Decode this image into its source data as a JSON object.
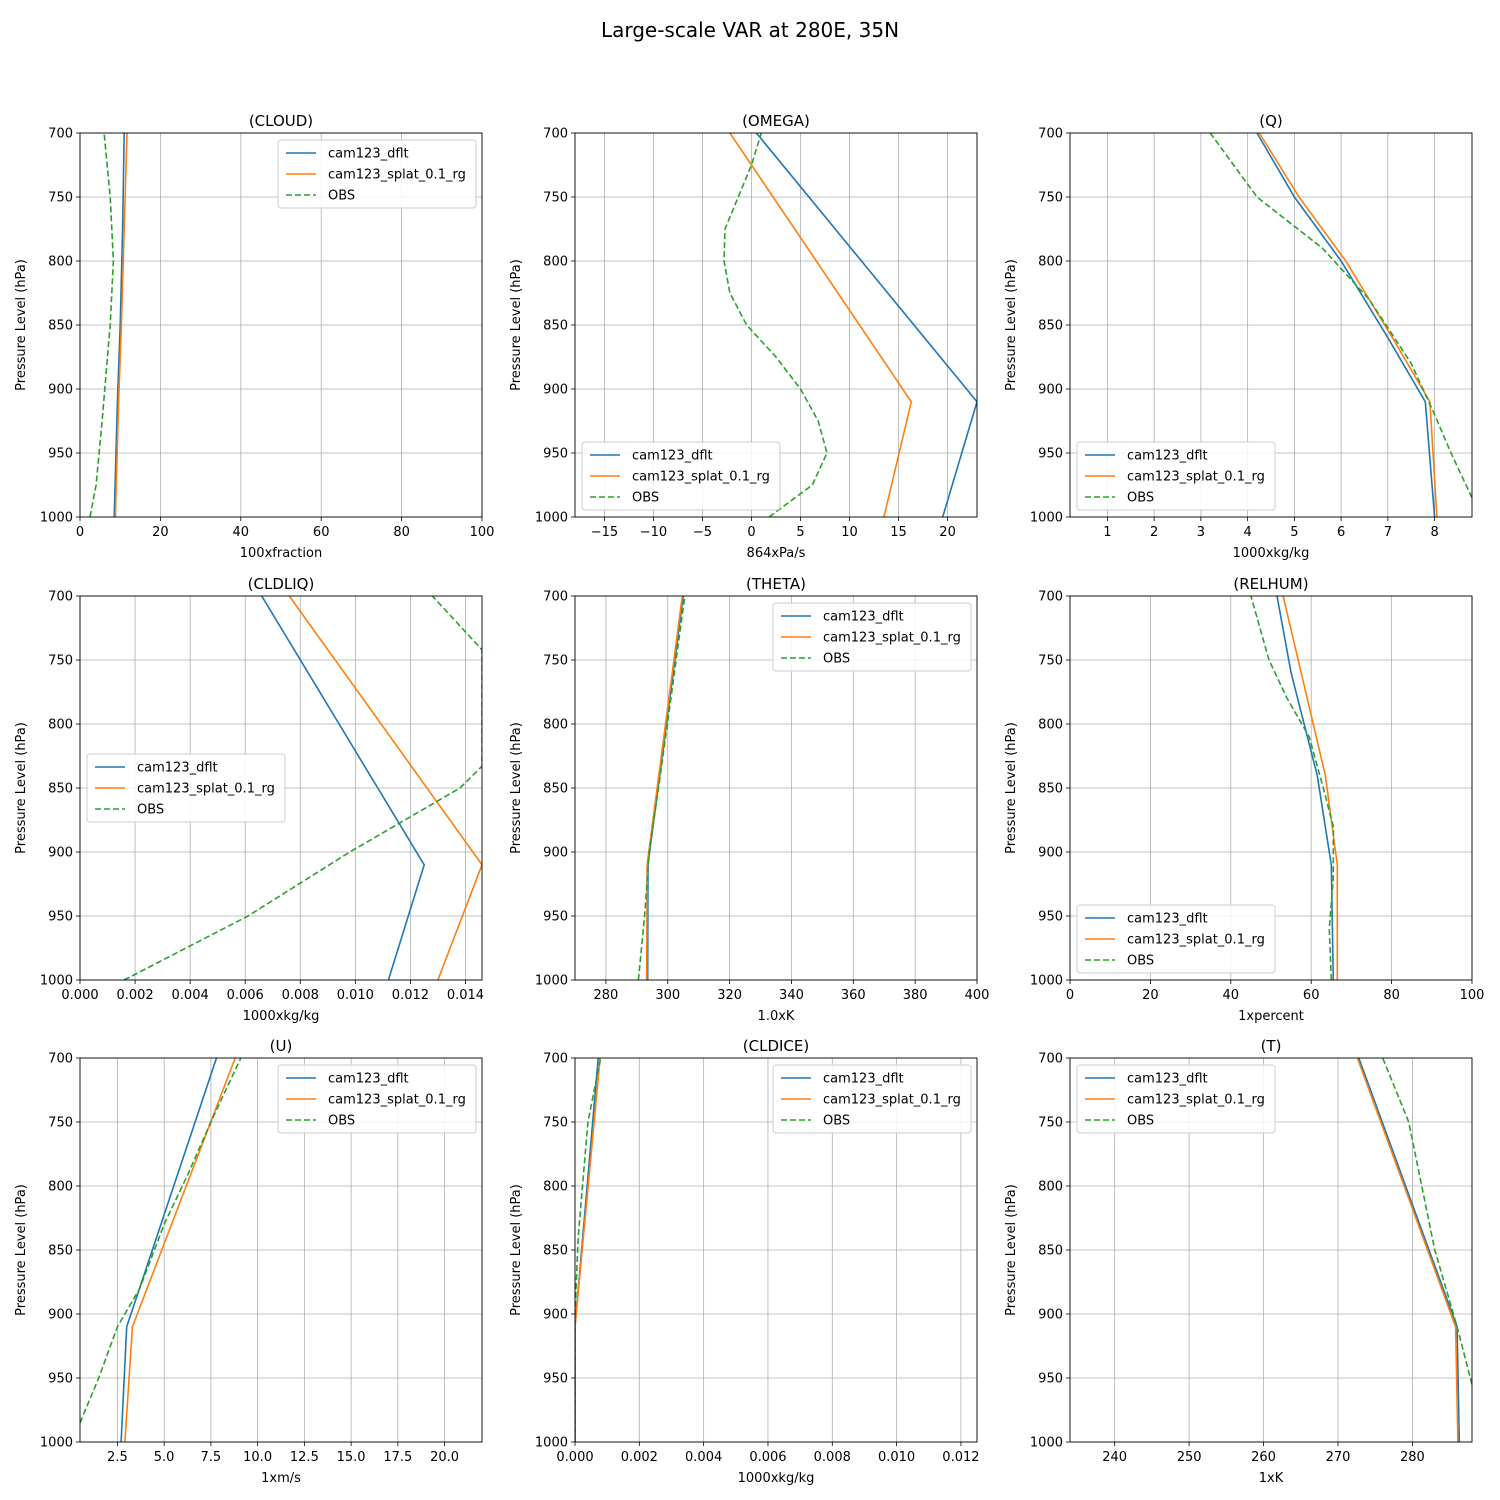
{
  "figure_title": "Large-scale VAR at 280E, 35N",
  "colors": {
    "model_a": "#1f77b4",
    "model_b": "#ff7f0e",
    "obs": "#2ca02c",
    "grid": "#b0b0b0",
    "axis": "#000000"
  },
  "chart_data": [
    {
      "type": "line",
      "title": "(CLOUD)",
      "xlabel": "100xfraction",
      "ylabel": "Pressure Level (hPa)",
      "xlim": [
        0,
        100
      ],
      "ylim": [
        1000,
        700
      ],
      "xticks": [
        0,
        20,
        40,
        60,
        80,
        100
      ],
      "xtick_labels": [
        "0",
        "20",
        "40",
        "60",
        "80",
        "100"
      ],
      "yticks": [
        700,
        750,
        800,
        850,
        900,
        950,
        1000
      ],
      "ytick_labels": [
        "700",
        "750",
        "800",
        "850",
        "900",
        "950",
        "1000"
      ],
      "legend": "upper-right",
      "grid": true,
      "series": [
        {
          "name": "cam123_dflt",
          "style": "solid",
          "color": "#1f77b4",
          "x": [
            8.5,
            9.3,
            10.0,
            10.6,
            11.0
          ],
          "y": [
            1000,
            910,
            850,
            775,
            700
          ]
        },
        {
          "name": "cam123_splat_0.1_rg",
          "style": "solid",
          "color": "#ff7f0e",
          "x": [
            8.8,
            9.6,
            10.3,
            11.0,
            11.7
          ],
          "y": [
            1000,
            910,
            850,
            775,
            700
          ]
        },
        {
          "name": "OBS",
          "style": "dashed",
          "color": "#2ca02c",
          "x": [
            2.5,
            4.0,
            5.5,
            7.5,
            8.3,
            7.5,
            6.0
          ],
          "y": [
            1000,
            975,
            925,
            850,
            800,
            750,
            700
          ]
        }
      ]
    },
    {
      "type": "line",
      "title": "(OMEGA)",
      "xlabel": "864xPa/s",
      "ylabel": "Pressure Level (hPa)",
      "xlim": [
        -18,
        23
      ],
      "ylim": [
        1000,
        700
      ],
      "xticks": [
        -15,
        -10,
        -5,
        0,
        5,
        10,
        15,
        20
      ],
      "xtick_labels": [
        "−15",
        "−10",
        "−5",
        "0",
        "5",
        "10",
        "15",
        "20"
      ],
      "yticks": [
        700,
        750,
        800,
        850,
        900,
        950,
        1000
      ],
      "ytick_labels": [
        "700",
        "750",
        "800",
        "850",
        "900",
        "950",
        "1000"
      ],
      "legend": "lower-left",
      "grid": true,
      "series": [
        {
          "name": "cam123_dflt",
          "style": "solid",
          "color": "#1f77b4",
          "x": [
            19.5,
            23.0,
            0.5
          ],
          "y": [
            1000,
            910,
            700
          ]
        },
        {
          "name": "cam123_splat_0.1_rg",
          "style": "solid",
          "color": "#ff7f0e",
          "x": [
            13.5,
            16.3,
            -2.2
          ],
          "y": [
            1000,
            910,
            700
          ]
        },
        {
          "name": "OBS",
          "style": "dashed",
          "color": "#2ca02c",
          "x": [
            1.8,
            6.2,
            7.7,
            6.8,
            5.0,
            2.5,
            -0.5,
            -2.2,
            -2.8,
            -2.7,
            0.0,
            1.0
          ],
          "y": [
            1000,
            975,
            950,
            925,
            900,
            875,
            850,
            825,
            800,
            775,
            725,
            700
          ]
        }
      ]
    },
    {
      "type": "line",
      "title": "(Q)",
      "xlabel": "1000xkg/kg",
      "ylabel": "Pressure Level (hPa)",
      "xlim": [
        0.2,
        8.8
      ],
      "ylim": [
        1000,
        700
      ],
      "xticks": [
        1,
        2,
        3,
        4,
        5,
        6,
        7,
        8
      ],
      "xtick_labels": [
        "1",
        "2",
        "3",
        "4",
        "5",
        "6",
        "7",
        "8"
      ],
      "yticks": [
        700,
        750,
        800,
        850,
        900,
        950,
        1000
      ],
      "ytick_labels": [
        "700",
        "750",
        "800",
        "850",
        "900",
        "950",
        "1000"
      ],
      "legend": "lower-left",
      "grid": true,
      "series": [
        {
          "name": "cam123_dflt",
          "style": "solid",
          "color": "#1f77b4",
          "x": [
            8.0,
            7.8,
            7.0,
            6.0,
            5.0,
            4.2
          ],
          "y": [
            1000,
            910,
            860,
            800,
            750,
            700
          ]
        },
        {
          "name": "cam123_splat_0.1_rg",
          "style": "solid",
          "color": "#ff7f0e",
          "x": [
            8.05,
            7.9,
            7.1,
            6.1,
            5.1,
            4.25
          ],
          "y": [
            1000,
            910,
            860,
            800,
            750,
            700
          ]
        },
        {
          "name": "OBS",
          "style": "dashed",
          "color": "#2ca02c",
          "x": [
            8.8,
            8.35,
            8.0,
            7.5,
            6.6,
            5.6,
            4.2,
            3.2
          ],
          "y": [
            985,
            950,
            920,
            880,
            830,
            790,
            750,
            700
          ]
        }
      ]
    },
    {
      "type": "line",
      "title": "(CLDLIQ)",
      "xlabel": "1000xkg/kg",
      "ylabel": "Pressure Level (hPa)",
      "xlim": [
        0,
        0.0146
      ],
      "ylim": [
        1000,
        700
      ],
      "xticks": [
        0,
        0.002,
        0.004,
        0.006,
        0.008,
        0.01,
        0.012,
        0.014
      ],
      "xtick_labels": [
        "0.000",
        "0.002",
        "0.004",
        "0.006",
        "0.008",
        "0.010",
        "0.012",
        "0.014"
      ],
      "yticks": [
        700,
        750,
        800,
        850,
        900,
        950,
        1000
      ],
      "ytick_labels": [
        "700",
        "750",
        "800",
        "850",
        "900",
        "950",
        "1000"
      ],
      "legend": "center-left",
      "grid": true,
      "series": [
        {
          "name": "cam123_dflt",
          "style": "solid",
          "color": "#1f77b4",
          "x": [
            0.0112,
            0.0125,
            0.0066
          ],
          "y": [
            1000,
            910,
            700
          ]
        },
        {
          "name": "cam123_splat_0.1_rg",
          "style": "solid",
          "color": "#ff7f0e",
          "x": [
            0.013,
            0.0146,
            0.0076
          ],
          "y": [
            1000,
            910,
            700
          ]
        },
        {
          "name": "OBS",
          "style": "dashed",
          "color": "#2ca02c",
          "x": [
            0.0016,
            0.0061,
            0.0098,
            0.0138,
            0.0146,
            0.0146,
            0.0128
          ],
          "y": [
            1000,
            950,
            900,
            850,
            833,
            742,
            700
          ]
        }
      ]
    },
    {
      "type": "line",
      "title": "(THETA)",
      "xlabel": "1.0xK",
      "ylabel": "Pressure Level (hPa)",
      "xlim": [
        270,
        400
      ],
      "ylim": [
        1000,
        700
      ],
      "xticks": [
        280,
        300,
        320,
        340,
        360,
        380,
        400
      ],
      "xtick_labels": [
        "280",
        "300",
        "320",
        "340",
        "360",
        "380",
        "400"
      ],
      "yticks": [
        700,
        750,
        800,
        850,
        900,
        950,
        1000
      ],
      "ytick_labels": [
        "700",
        "750",
        "800",
        "850",
        "900",
        "950",
        "1000"
      ],
      "legend": "upper-right",
      "grid": true,
      "series": [
        {
          "name": "cam123_dflt",
          "style": "solid",
          "color": "#1f77b4",
          "x": [
            293.5,
            293.6,
            305.0
          ],
          "y": [
            1000,
            910,
            700
          ]
        },
        {
          "name": "cam123_splat_0.1_rg",
          "style": "solid",
          "color": "#ff7f0e",
          "x": [
            293.2,
            293.3,
            304.7
          ],
          "y": [
            1000,
            910,
            700
          ]
        },
        {
          "name": "OBS",
          "style": "dashed",
          "color": "#2ca02c",
          "x": [
            290.5,
            292.5,
            294.0,
            297.0,
            301.0,
            305.5
          ],
          "y": [
            1000,
            950,
            900,
            850,
            780,
            700
          ]
        }
      ]
    },
    {
      "type": "line",
      "title": "(RELHUM)",
      "xlabel": "1xpercent",
      "ylabel": "Pressure Level (hPa)",
      "xlim": [
        0,
        100
      ],
      "ylim": [
        1000,
        700
      ],
      "xticks": [
        0,
        20,
        40,
        60,
        80,
        100
      ],
      "xtick_labels": [
        "0",
        "20",
        "40",
        "60",
        "80",
        "100"
      ],
      "yticks": [
        700,
        750,
        800,
        850,
        900,
        950,
        1000
      ],
      "ytick_labels": [
        "700",
        "750",
        "800",
        "850",
        "900",
        "950",
        "1000"
      ],
      "legend": "lower-left",
      "grid": true,
      "series": [
        {
          "name": "cam123_dflt",
          "style": "solid",
          "color": "#1f77b4",
          "x": [
            65.5,
            65.0,
            61.5,
            55.0,
            51.5
          ],
          "y": [
            1000,
            910,
            840,
            760,
            700
          ]
        },
        {
          "name": "cam123_splat_0.1_rg",
          "style": "solid",
          "color": "#ff7f0e",
          "x": [
            66.5,
            66.5,
            63.5,
            57.5,
            53.0
          ],
          "y": [
            1000,
            910,
            840,
            760,
            700
          ]
        },
        {
          "name": "OBS",
          "style": "dashed",
          "color": "#2ca02c",
          "x": [
            65.0,
            64.5,
            65.5,
            65.5,
            63.0,
            59.5,
            54.0,
            49.5,
            45.0
          ],
          "y": [
            1000,
            960,
            920,
            880,
            850,
            810,
            780,
            750,
            700
          ]
        }
      ]
    },
    {
      "type": "line",
      "title": "(U)",
      "xlabel": "1xm/s",
      "ylabel": "Pressure Level (hPa)",
      "xlim": [
        0.5,
        22
      ],
      "ylim": [
        1000,
        700
      ],
      "xticks": [
        2.5,
        5,
        7.5,
        10,
        12.5,
        15,
        17.5,
        20
      ],
      "xtick_labels": [
        "2.5",
        "5.0",
        "7.5",
        "10.0",
        "12.5",
        "15.0",
        "17.5",
        "20.0"
      ],
      "yticks": [
        700,
        750,
        800,
        850,
        900,
        950,
        1000
      ],
      "ytick_labels": [
        "700",
        "750",
        "800",
        "850",
        "900",
        "950",
        "1000"
      ],
      "legend": "upper-right",
      "grid": true,
      "series": [
        {
          "name": "cam123_dflt",
          "style": "solid",
          "color": "#1f77b4",
          "x": [
            2.7,
            3.0,
            7.8
          ],
          "y": [
            1000,
            910,
            700
          ]
        },
        {
          "name": "cam123_splat_0.1_rg",
          "style": "solid",
          "color": "#ff7f0e",
          "x": [
            2.9,
            3.3,
            8.8
          ],
          "y": [
            1000,
            910,
            700
          ]
        },
        {
          "name": "OBS",
          "style": "dashed",
          "color": "#2ca02c",
          "x": [
            0.5,
            1.5,
            2.5,
            3.7,
            5.0,
            6.3,
            7.5,
            9.1
          ],
          "y": [
            985,
            950,
            910,
            880,
            830,
            790,
            750,
            700
          ]
        }
      ]
    },
    {
      "type": "line",
      "title": "(CLDICE)",
      "xlabel": "1000xkg/kg",
      "ylabel": "Pressure Level (hPa)",
      "xlim": [
        0,
        0.0125
      ],
      "ylim": [
        1000,
        700
      ],
      "xticks": [
        0,
        0.002,
        0.004,
        0.006,
        0.008,
        0.01,
        0.012
      ],
      "xtick_labels": [
        "0.000",
        "0.002",
        "0.004",
        "0.006",
        "0.008",
        "0.010",
        "0.012"
      ],
      "yticks": [
        700,
        750,
        800,
        850,
        900,
        950,
        1000
      ],
      "ytick_labels": [
        "700",
        "750",
        "800",
        "850",
        "900",
        "950",
        "1000"
      ],
      "legend": "upper-right",
      "grid": true,
      "series": [
        {
          "name": "cam123_dflt",
          "style": "solid",
          "color": "#1f77b4",
          "x": [
            0.0,
            0.0,
            0.00072
          ],
          "y": [
            1000,
            910,
            700
          ]
        },
        {
          "name": "cam123_splat_0.1_rg",
          "style": "solid",
          "color": "#ff7f0e",
          "x": [
            0.0,
            0.0,
            0.00078
          ],
          "y": [
            1000,
            910,
            700
          ]
        },
        {
          "name": "OBS",
          "style": "dashed",
          "color": "#2ca02c",
          "x": [
            0.0,
            0.0,
            0.0001,
            0.0004,
            0.0008
          ],
          "y": [
            1000,
            900,
            840,
            750,
            700
          ]
        }
      ]
    },
    {
      "type": "line",
      "title": "(T)",
      "xlabel": "1xK",
      "ylabel": "Pressure Level (hPa)",
      "xlim": [
        234,
        288
      ],
      "ylim": [
        1000,
        700
      ],
      "xticks": [
        240,
        250,
        260,
        270,
        280
      ],
      "xtick_labels": [
        "240",
        "250",
        "260",
        "270",
        "280"
      ],
      "yticks": [
        700,
        750,
        800,
        850,
        900,
        950,
        1000
      ],
      "ytick_labels": [
        "700",
        "750",
        "800",
        "850",
        "900",
        "950",
        "1000"
      ],
      "legend": "upper-left",
      "grid": true,
      "series": [
        {
          "name": "cam123_dflt",
          "style": "solid",
          "color": "#1f77b4",
          "x": [
            286.3,
            286.0,
            272.8
          ],
          "y": [
            1000,
            910,
            700
          ]
        },
        {
          "name": "cam123_splat_0.1_rg",
          "style": "solid",
          "color": "#ff7f0e",
          "x": [
            286.1,
            285.8,
            272.6
          ],
          "y": [
            1000,
            910,
            700
          ]
        },
        {
          "name": "OBS",
          "style": "dashed",
          "color": "#2ca02c",
          "x": [
            288.0,
            286.0,
            283.0,
            279.5,
            276.0
          ],
          "y": [
            955,
            910,
            850,
            750,
            700
          ]
        }
      ]
    }
  ]
}
